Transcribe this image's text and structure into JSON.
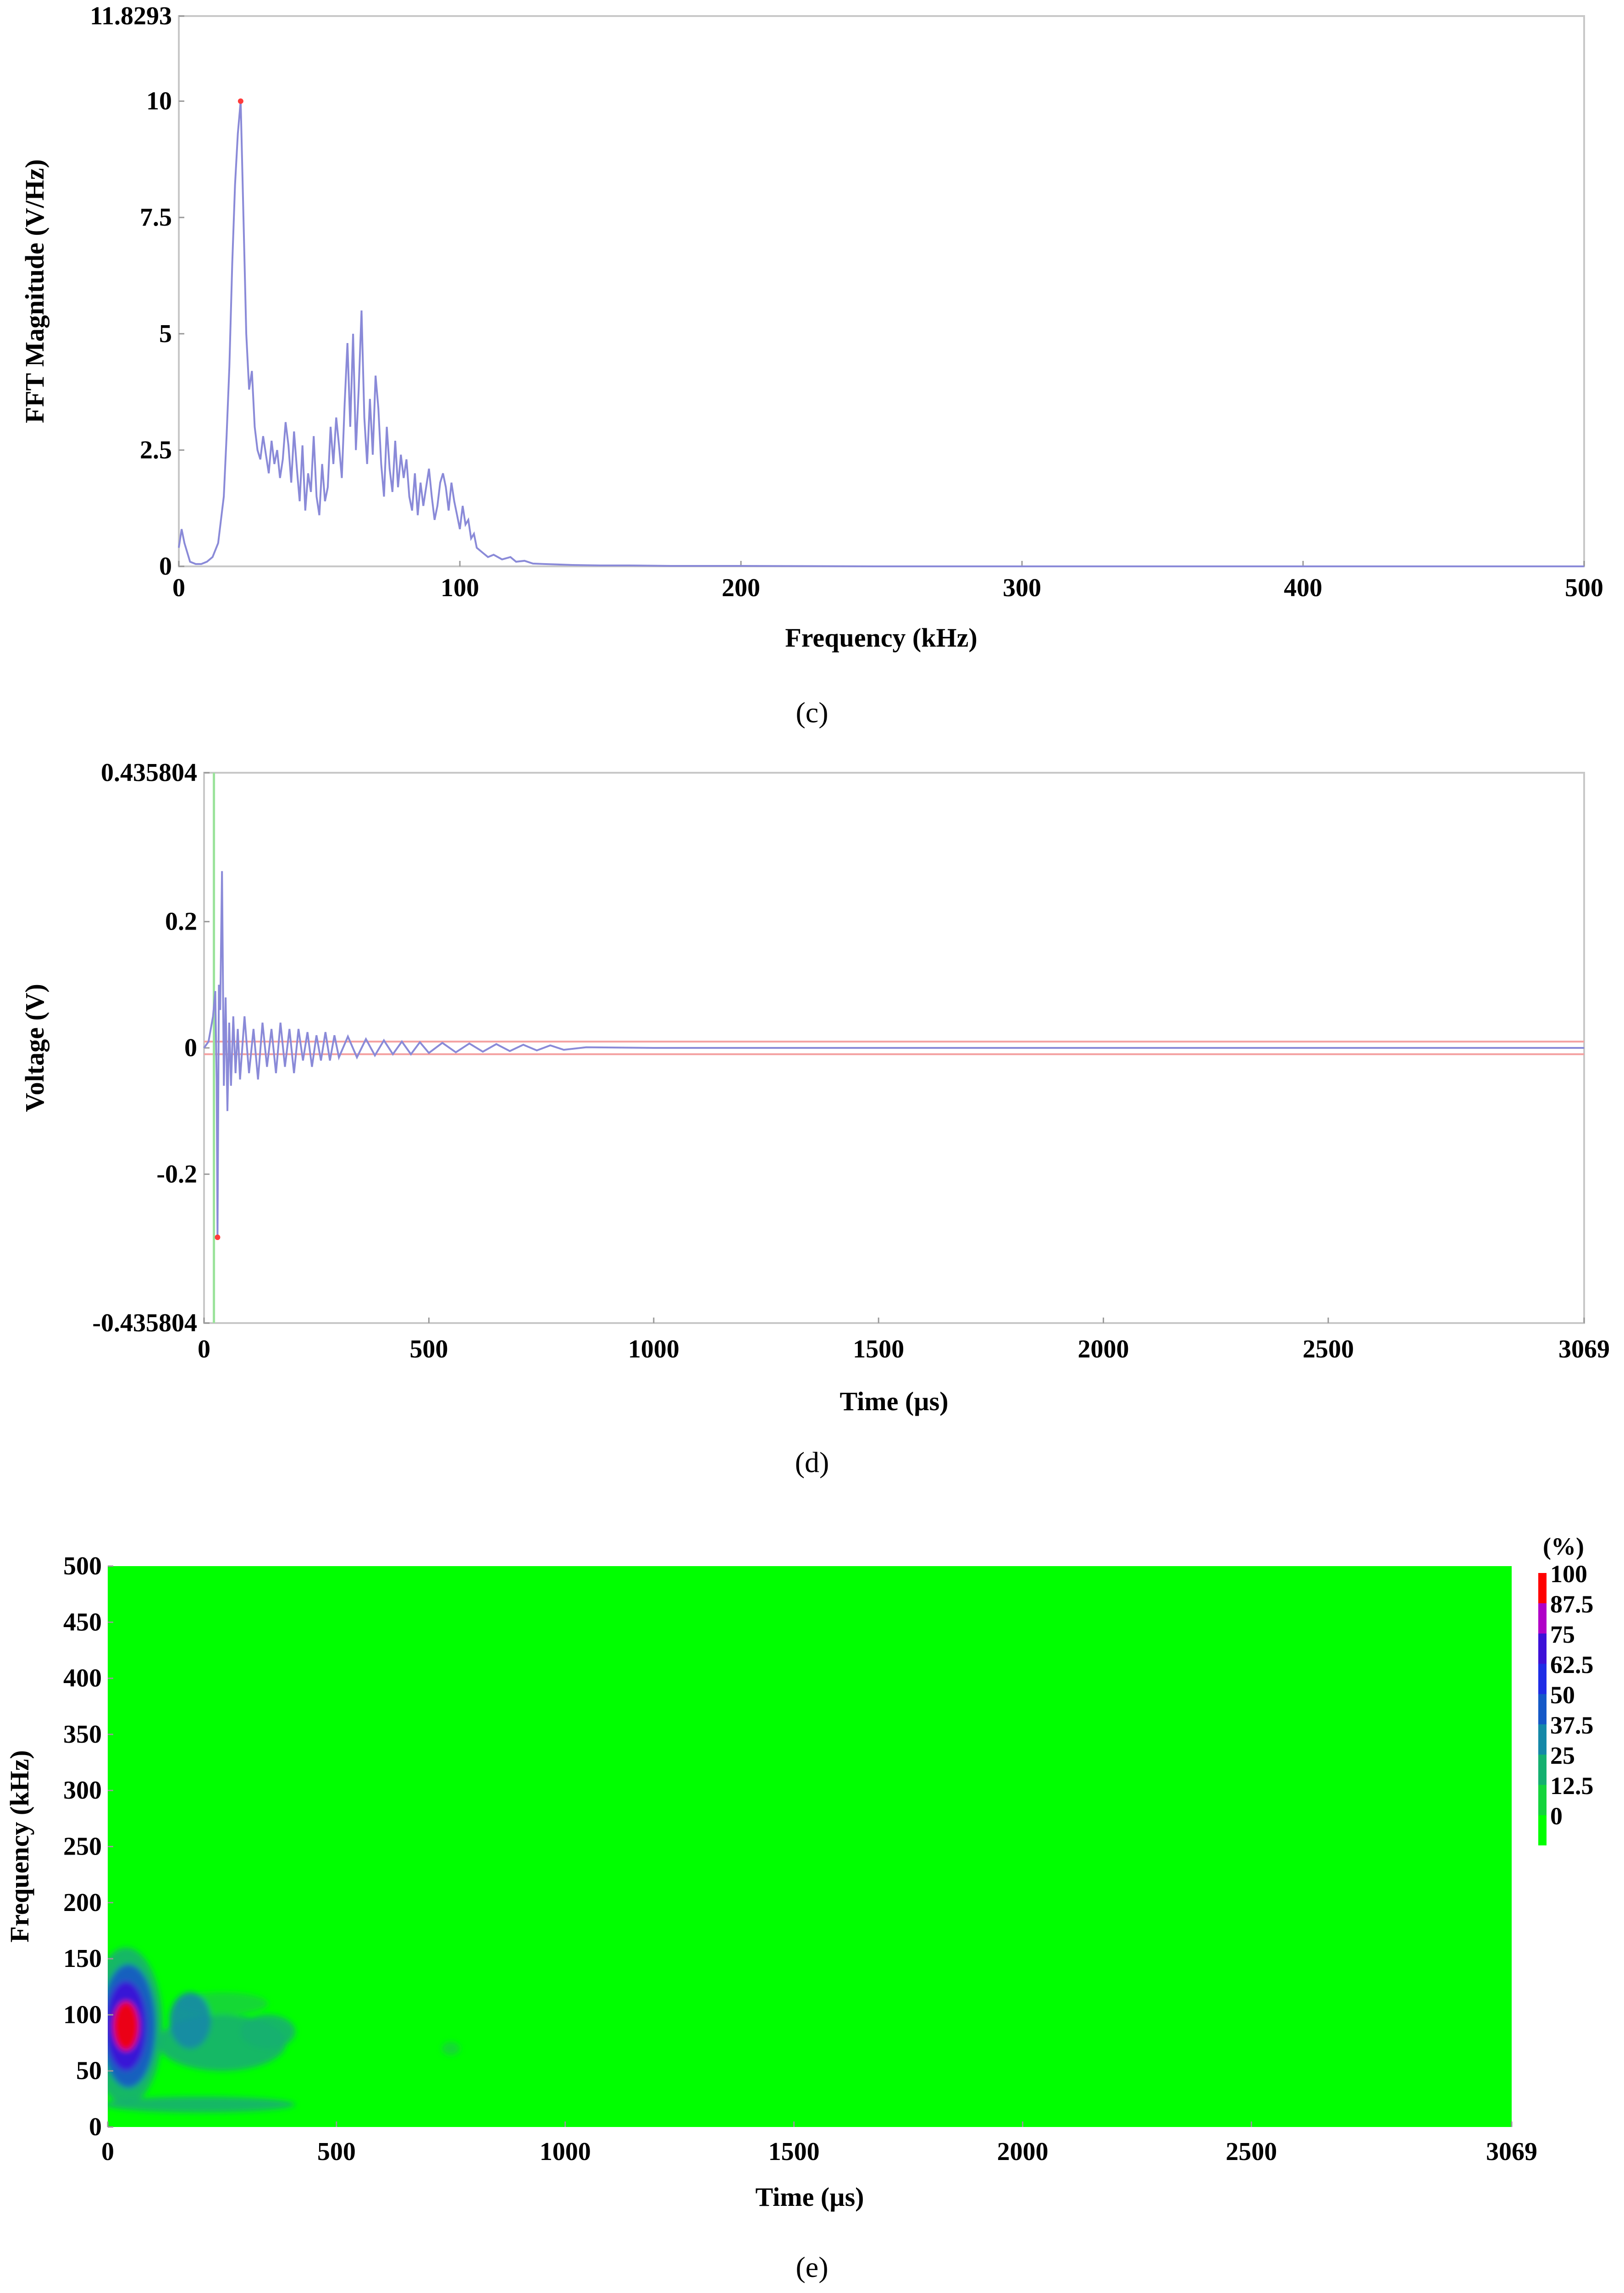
{
  "chart_data": [
    {
      "id": "c",
      "type": "line",
      "panel_label": "(c)",
      "xlabel": "Frequency (kHz)",
      "ylabel": "FFT Magnitude (V/Hz)",
      "xlim": [
        0,
        500
      ],
      "ylim": [
        0,
        11.8293
      ],
      "x_ticks": [
        "0",
        "100",
        "200",
        "300",
        "400",
        "500"
      ],
      "y_ticks": [
        "0",
        "2.5",
        "5",
        "7.5",
        "10",
        "11.8293"
      ],
      "x_tick_values": [
        0,
        100,
        200,
        300,
        400,
        500
      ],
      "y_tick_values": [
        0,
        2.5,
        5,
        7.5,
        10,
        11.8293
      ],
      "line_color": "#8a8ad8",
      "marker_color": "#ff3b3b",
      "peak_marker": {
        "x": 22,
        "y": 10
      },
      "series": [
        {
          "x": [
            0,
            1,
            2,
            4,
            6,
            8,
            10,
            12,
            14,
            16,
            17,
            18,
            19,
            20,
            21,
            22,
            23,
            24,
            25,
            26,
            27,
            28,
            29,
            30,
            31,
            32,
            33,
            34,
            35,
            36,
            37,
            38,
            39,
            40,
            41,
            42,
            43,
            44,
            45,
            46,
            47,
            48,
            49,
            50,
            51,
            52,
            53,
            54,
            55,
            56,
            57,
            58,
            59,
            60,
            61,
            62,
            63,
            64,
            65,
            66,
            67,
            68,
            69,
            70,
            71,
            72,
            73,
            74,
            75,
            76,
            77,
            78,
            79,
            80,
            81,
            82,
            83,
            84,
            85,
            86,
            87,
            88,
            89,
            90,
            91,
            92,
            93,
            94,
            95,
            96,
            97,
            98,
            99,
            100,
            101,
            102,
            103,
            104,
            105,
            106,
            108,
            110,
            112,
            115,
            118,
            120,
            123,
            126,
            130,
            135,
            140,
            150,
            160,
            175,
            200,
            250,
            300,
            400,
            500
          ],
          "y": [
            0.4,
            0.8,
            0.5,
            0.1,
            0.05,
            0.05,
            0.1,
            0.2,
            0.5,
            1.5,
            2.8,
            4.3,
            6.5,
            8.2,
            9.3,
            10.0,
            7.5,
            5.0,
            3.8,
            4.2,
            3.0,
            2.5,
            2.3,
            2.8,
            2.4,
            2.0,
            2.7,
            2.2,
            2.5,
            1.9,
            2.3,
            3.1,
            2.6,
            1.8,
            2.9,
            2.1,
            1.4,
            2.6,
            1.2,
            2.0,
            1.6,
            2.8,
            1.5,
            1.1,
            2.2,
            1.4,
            1.7,
            3.0,
            2.2,
            3.2,
            2.6,
            1.9,
            3.5,
            4.8,
            3.0,
            5.0,
            2.5,
            3.8,
            5.5,
            3.2,
            2.2,
            3.6,
            2.4,
            4.1,
            3.4,
            2.2,
            1.5,
            3.0,
            2.1,
            1.6,
            2.7,
            1.7,
            2.4,
            1.9,
            2.3,
            1.5,
            1.2,
            2.0,
            1.1,
            1.8,
            1.3,
            1.7,
            2.1,
            1.5,
            1.0,
            1.3,
            1.8,
            2.0,
            1.7,
            1.2,
            1.8,
            1.4,
            1.1,
            0.8,
            1.3,
            0.9,
            1.0,
            0.6,
            0.7,
            0.4,
            0.3,
            0.2,
            0.25,
            0.15,
            0.2,
            0.1,
            0.12,
            0.06,
            0.05,
            0.04,
            0.03,
            0.02,
            0.02,
            0.01,
            0.01,
            0.0,
            0.0,
            0.0,
            0.0
          ]
        }
      ]
    },
    {
      "id": "d",
      "type": "line",
      "panel_label": "(d)",
      "xlabel": "Time (µs)",
      "ylabel": "Voltage (V)",
      "xlim": [
        0,
        3069
      ],
      "ylim": [
        -0.435804,
        0.435804
      ],
      "x_ticks": [
        "0",
        "500",
        "1000",
        "1500",
        "2000",
        "2500",
        "3069"
      ],
      "y_ticks": [
        "-0.435804",
        "-0.2",
        "0",
        "0.2",
        "0.435804"
      ],
      "x_tick_values": [
        0,
        500,
        1000,
        1500,
        2000,
        2500,
        3069
      ],
      "y_tick_values": [
        -0.435804,
        -0.2,
        0,
        0.2,
        0.435804
      ],
      "line_color": "#8a8ad8",
      "marker_color": "#ff3b3b",
      "threshold_color": "#f4a0a0",
      "cursor_color": "#9be39b",
      "cursor_x": 22,
      "threshold_levels": [
        -0.01,
        0.01
      ],
      "min_marker": {
        "x": 30,
        "y": -0.3
      },
      "series": [
        {
          "x": [
            0,
            10,
            20,
            25,
            28,
            30,
            33,
            36,
            40,
            44,
            48,
            52,
            56,
            60,
            65,
            70,
            75,
            80,
            90,
            100,
            110,
            120,
            130,
            140,
            150,
            160,
            170,
            180,
            190,
            200,
            210,
            220,
            230,
            240,
            250,
            260,
            270,
            280,
            290,
            300,
            320,
            340,
            360,
            380,
            400,
            420,
            440,
            460,
            480,
            500,
            530,
            560,
            590,
            620,
            650,
            680,
            710,
            740,
            770,
            800,
            850,
            1000,
            3069
          ],
          "y": [
            0,
            0.01,
            0.05,
            0.09,
            -0.05,
            -0.3,
            0.1,
            0.06,
            0.28,
            -0.06,
            0.08,
            -0.1,
            0.04,
            -0.06,
            0.05,
            -0.04,
            0.03,
            -0.05,
            0.05,
            -0.04,
            0.03,
            -0.05,
            0.04,
            -0.03,
            0.03,
            -0.04,
            0.04,
            -0.03,
            0.03,
            -0.04,
            0.03,
            -0.02,
            0.025,
            -0.03,
            0.02,
            -0.02,
            0.025,
            -0.02,
            0.02,
            -0.015,
            0.018,
            -0.015,
            0.014,
            -0.012,
            0.012,
            -0.01,
            0.01,
            -0.01,
            0.009,
            -0.008,
            0.008,
            -0.007,
            0.007,
            -0.006,
            0.006,
            -0.005,
            0.005,
            -0.004,
            0.004,
            -0.003,
            0.001,
            0,
            0
          ]
        }
      ]
    },
    {
      "id": "e",
      "type": "heatmap",
      "panel_label": "(e)",
      "xlabel": "Time (µs)",
      "ylabel": "Frequency (kHz)",
      "xlim": [
        0,
        3069
      ],
      "ylim": [
        0,
        500
      ],
      "x_ticks": [
        "0",
        "500",
        "1000",
        "1500",
        "2000",
        "2500",
        "3069"
      ],
      "y_ticks": [
        "0",
        "50",
        "100",
        "150",
        "200",
        "250",
        "300",
        "350",
        "400",
        "450",
        "500"
      ],
      "x_tick_values": [
        0,
        500,
        1000,
        1500,
        2000,
        2500,
        3069
      ],
      "y_tick_values": [
        0,
        50,
        100,
        150,
        200,
        250,
        300,
        350,
        400,
        450,
        500
      ],
      "colorbar_title": "(%)",
      "colorbar_ticks": [
        "100",
        "87.5",
        "75",
        "62.5",
        "50",
        "37.5",
        "25",
        "12.5",
        "0"
      ],
      "colorbar_colors": [
        "#ff0000",
        "#b000c8",
        "#3d10d8",
        "#1e2ce6",
        "#1458c8",
        "#1488a8",
        "#14b070",
        "#14d43c",
        "#00ff00"
      ],
      "background_color": "#00ff00",
      "features": [
        {
          "t": 40,
          "f": 90,
          "intensity": 100,
          "dt": 28,
          "df": 22
        },
        {
          "t": 40,
          "f": 90,
          "intensity": 75,
          "dt": 45,
          "df": 40
        },
        {
          "t": 45,
          "f": 90,
          "intensity": 50,
          "dt": 60,
          "df": 55
        },
        {
          "t": 40,
          "f": 90,
          "intensity": 25,
          "dt": 80,
          "df": 70
        },
        {
          "t": 180,
          "f": 95,
          "intensity": 37.5,
          "dt": 45,
          "df": 25
        },
        {
          "t": 250,
          "f": 75,
          "intensity": 25,
          "dt": 140,
          "df": 25
        },
        {
          "t": 350,
          "f": 85,
          "intensity": 25,
          "dt": 60,
          "df": 15
        },
        {
          "t": 250,
          "f": 110,
          "intensity": 12.5,
          "dt": 100,
          "df": 10
        },
        {
          "t": 200,
          "f": 20,
          "intensity": 25,
          "dt": 210,
          "df": 7
        },
        {
          "t": 750,
          "f": 70,
          "intensity": 12.5,
          "dt": 20,
          "df": 6
        }
      ]
    }
  ]
}
